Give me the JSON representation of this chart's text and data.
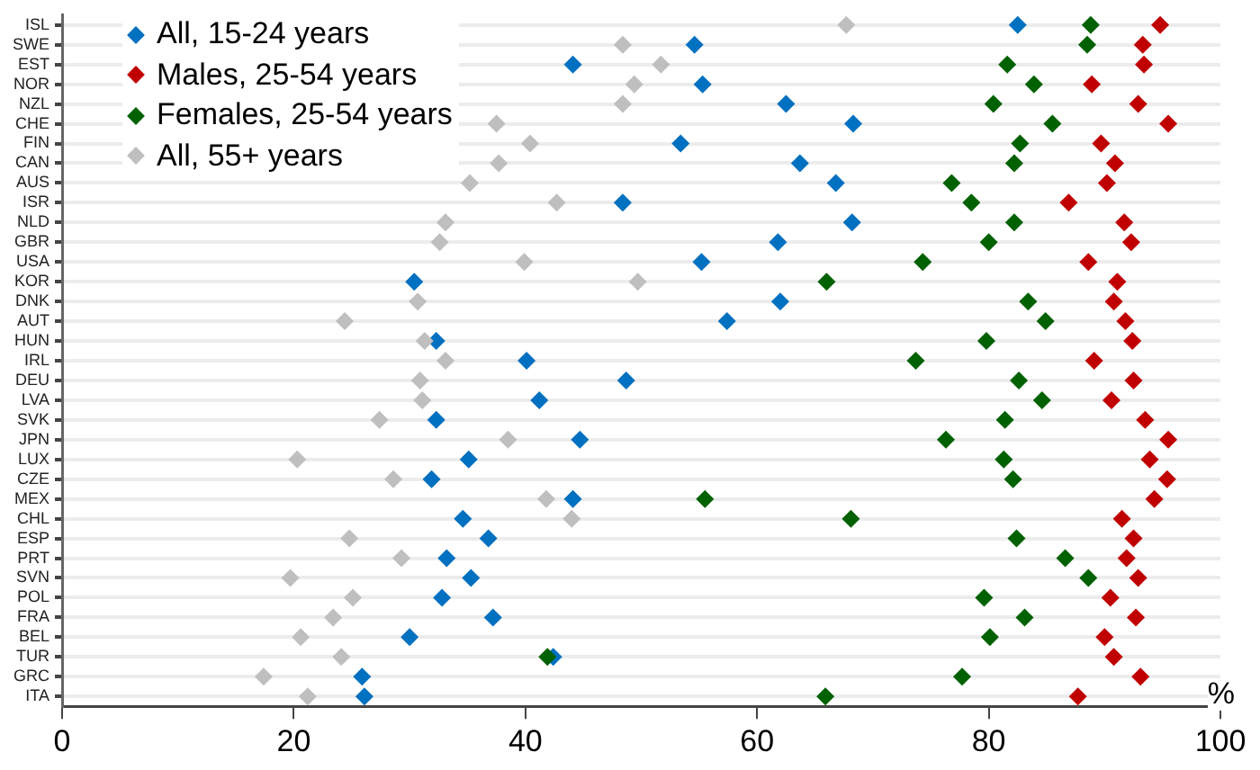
{
  "chart_data": {
    "type": "scatter",
    "orientation": "horizontal",
    "marker": "diamond",
    "grid": "y",
    "legend": "top left",
    "xlim": [
      0,
      100
    ],
    "xticks": [
      0,
      20,
      40,
      60,
      80,
      100
    ],
    "annotations": [
      "%"
    ],
    "categories": [
      "ISL",
      "SWE",
      "EST",
      "NOR",
      "NZL",
      "CHE",
      "FIN",
      "CAN",
      "AUS",
      "ISR",
      "NLD",
      "GBR",
      "USA",
      "KOR",
      "DNK",
      "AUT",
      "HUN",
      "IRL",
      "DEU",
      "LVA",
      "SVK",
      "JPN",
      "LUX",
      "CZE",
      "MEX",
      "CHL",
      "ESP",
      "PRT",
      "SVN",
      "POL",
      "FRA",
      "BEL",
      "TUR",
      "GRC",
      "ITA"
    ],
    "series": [
      {
        "name": "All, 15-24 years",
        "color": "#0070c0",
        "values": [
          82.5,
          54.6,
          44.1,
          55.3,
          62.5,
          68.3,
          53.4,
          63.7,
          66.8,
          48.4,
          68.2,
          61.8,
          55.2,
          30.4,
          62.0,
          57.4,
          32.3,
          40.1,
          48.7,
          41.2,
          32.3,
          44.7,
          35.1,
          31.9,
          44.1,
          34.6,
          36.8,
          33.2,
          35.3,
          32.8,
          37.2,
          30.0,
          42.4,
          25.9,
          26.1
        ]
      },
      {
        "name": "Males, 25-54 years",
        "color": "#c00000",
        "values": [
          94.8,
          93.3,
          93.4,
          88.9,
          92.9,
          95.5,
          89.7,
          90.9,
          90.2,
          86.9,
          91.7,
          92.3,
          88.6,
          91.1,
          90.8,
          91.8,
          92.4,
          89.1,
          92.5,
          90.6,
          93.5,
          95.5,
          93.9,
          95.4,
          94.3,
          91.5,
          92.5,
          91.9,
          92.9,
          90.5,
          92.7,
          90.0,
          90.8,
          93.1,
          87.7
        ]
      },
      {
        "name": "Females, 25-54 years",
        "color": "#006100",
        "values": [
          88.8,
          88.5,
          81.6,
          83.9,
          80.4,
          85.5,
          82.7,
          82.2,
          76.8,
          78.5,
          82.2,
          80.0,
          74.3,
          66.0,
          83.4,
          84.9,
          79.8,
          73.7,
          82.6,
          84.6,
          81.4,
          76.3,
          81.3,
          82.1,
          55.5,
          68.1,
          82.4,
          86.6,
          88.6,
          79.6,
          83.1,
          80.1,
          41.9,
          77.7,
          65.9
        ]
      },
      {
        "name": "All, 55+ years",
        "color": "#bfbfbf",
        "values": [
          67.7,
          48.4,
          51.7,
          49.4,
          48.4,
          37.5,
          40.4,
          37.7,
          35.2,
          42.7,
          33.1,
          32.6,
          39.9,
          49.7,
          30.7,
          24.4,
          31.3,
          33.1,
          30.9,
          31.1,
          27.4,
          38.5,
          20.3,
          28.6,
          41.8,
          44.0,
          24.8,
          29.3,
          19.7,
          25.1,
          23.4,
          20.6,
          24.1,
          17.4,
          21.2
        ]
      }
    ]
  }
}
